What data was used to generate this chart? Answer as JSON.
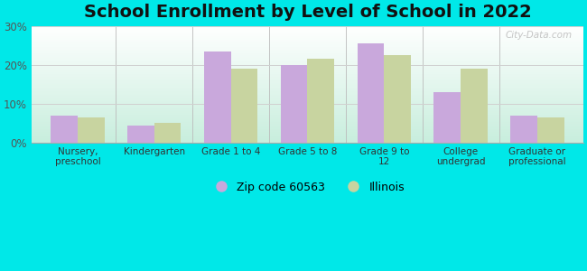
{
  "title": "School Enrollment by Level of School in 2022",
  "categories": [
    "Nursery,\npreschool",
    "Kindergarten",
    "Grade 1 to 4",
    "Grade 5 to 8",
    "Grade 9 to\n12",
    "College\nundergrad",
    "Graduate or\nprofessional"
  ],
  "zip_values": [
    7.0,
    4.5,
    23.5,
    20.0,
    25.5,
    13.0,
    7.0
  ],
  "illinois_values": [
    6.5,
    5.0,
    19.0,
    21.5,
    22.5,
    19.0,
    6.5
  ],
  "zip_color": "#c9a8dc",
  "illinois_color": "#c8d4a0",
  "zip_label": "Zip code 60563",
  "illinois_label": "Illinois",
  "ylim": [
    0,
    30
  ],
  "yticks": [
    0,
    10,
    20,
    30
  ],
  "yticklabels": [
    "0%",
    "10%",
    "20%",
    "30%"
  ],
  "background_color": "#00e8e8",
  "plot_bg_top": "#ffffff",
  "plot_bg_bottom": "#c8eedd",
  "title_fontsize": 14,
  "bar_width": 0.35,
  "watermark_text": "City-Data.com",
  "grid_color": "#d0d0d0",
  "separator_color": "#bbbbbb"
}
